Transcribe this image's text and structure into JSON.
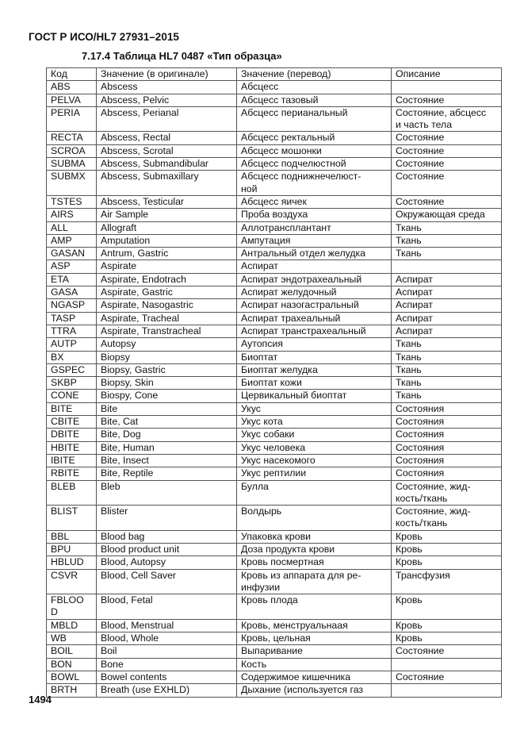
{
  "header": "ГОСТ Р ИСО/HL7 27931–2015",
  "section_title": "7.17.4 Таблица HL7  0487 «Тип образца»",
  "table": {
    "columns": [
      "Код",
      "Значение (в оригинале)",
      "Значение (перевод)",
      "Описание"
    ],
    "rows": [
      [
        "ABS",
        "Abscess",
        "Абсцесс",
        ""
      ],
      [
        "PELVA",
        "Abscess, Pelvic",
        "Абсцесс тазовый",
        "Состояние"
      ],
      [
        "PERIA",
        "Abscess, Perianal",
        "Абсцесс перианальный",
        "Состояние,   абсцесс\nи часть тела"
      ],
      [
        "RECTA",
        "Abscess, Rectal",
        "Абсцесс ректальный",
        "Состояние"
      ],
      [
        "SCROA",
        "Abscess, Scrotal",
        "Абсцесс мошонки",
        "Состояние"
      ],
      [
        "SUBMA",
        "Abscess, Submandibular",
        "Абсцесс подчелюстной",
        "Состояние"
      ],
      [
        "SUBMX",
        "Abscess, Submaxillary",
        "Абсцесс     поднижнечелюст-\nной",
        "Состояние"
      ],
      [
        "TSTES",
        "Abscess, Testicular",
        "Абсцесс яичек",
        "Состояние"
      ],
      [
        "AIRS",
        "Air Sample",
        "Проба воздуха",
        "Окружающая среда"
      ],
      [
        "ALL",
        "Allograft",
        "Аллотрансплантант",
        "Ткань"
      ],
      [
        "AMP",
        "Amputation",
        "Ампутация",
        "Ткань"
      ],
      [
        "GASAN",
        "Antrum, Gastric",
        "Антральный отдел желудка",
        "Ткань"
      ],
      [
        "ASP",
        "Aspirate",
        "Аспират",
        ""
      ],
      [
        "ETA",
        "Aspirate, Endotrach",
        "Аспират эндотрахеальный",
        "Аспират"
      ],
      [
        "GASA",
        "Aspirate, Gastric",
        "Аспират желудочный",
        "Аспират"
      ],
      [
        "NGASP",
        "Aspirate, Nasogastric",
        "Аспират назогастральный",
        "Аспират"
      ],
      [
        "TASP",
        "Aspirate, Tracheal",
        "Аспират трахеальный",
        "Аспират"
      ],
      [
        "TTRA",
        "Aspirate, Transtracheal",
        "Аспират транстрахеальный",
        "Аспират"
      ],
      [
        "AUTP",
        "Autopsy",
        "Аутопсия",
        "Ткань"
      ],
      [
        "BX",
        "Biopsy",
        "Биоптат",
        "Ткань"
      ],
      [
        "GSPEC",
        "Biopsy, Gastric",
        "Биоптат желудка",
        "Ткань"
      ],
      [
        "SKBP",
        "Biopsy, Skin",
        "Биоптат кожи",
        "Ткань"
      ],
      [
        "CONE",
        "Biospy, Cone",
        "Цервикальный биоптат",
        "Ткань"
      ],
      [
        "BITE",
        "Bite",
        "Укус",
        "Состояния"
      ],
      [
        "CBITE",
        "Bite, Cat",
        "Укус кота",
        "Состояния"
      ],
      [
        "DBITE",
        "Bite, Dog",
        "Укус собаки",
        "Состояния"
      ],
      [
        "HBITE",
        "Bite, Human",
        "Укус человека",
        "Состояния"
      ],
      [
        "IBITE",
        "Bite, Insect",
        "Укус насекомого",
        "Состояния"
      ],
      [
        "RBITE",
        "Bite, Reptile",
        "Укус рептилии",
        "Состояния"
      ],
      [
        "BLEB",
        "Bleb",
        "Булла",
        "Состояние,          жид-\nкость/ткань"
      ],
      [
        "BLIST",
        "Blister",
        "Волдырь",
        "Состояние,          жид-\nкость/ткань"
      ],
      [
        "BBL",
        "Blood bag",
        "Упаковка крови",
        "Кровь"
      ],
      [
        "BPU",
        "Blood product unit",
        "Доза продукта крови",
        "Кровь"
      ],
      [
        "HBLUD",
        "Blood, Autopsy",
        "Кровь посмертная",
        "Кровь"
      ],
      [
        "CSVR",
        "Blood, Cell Saver",
        "Кровь  из  аппарата  для  ре-\nинфузии",
        "Трансфузия"
      ],
      [
        "FBLOO\nD",
        "Blood, Fetal",
        "Кровь плода",
        "Кровь"
      ],
      [
        "MBLD",
        "Blood, Menstrual",
        "Кровь, менструальнаая",
        "Кровь"
      ],
      [
        "WB",
        "Blood, Whole",
        "Кровь, цельная",
        "Кровь"
      ],
      [
        "BOIL",
        "Boil",
        "Выпаривание",
        "Состояние"
      ],
      [
        "BON",
        "Bone",
        "Кость",
        ""
      ],
      [
        "BOWL",
        "Bowel contents",
        "Содержимое кишечника",
        "Состояние"
      ],
      [
        "BRTH",
        "Breath (use EXHLD)",
        "Дыхание    (используется    газ",
        ""
      ]
    ]
  },
  "page_number": "1494"
}
